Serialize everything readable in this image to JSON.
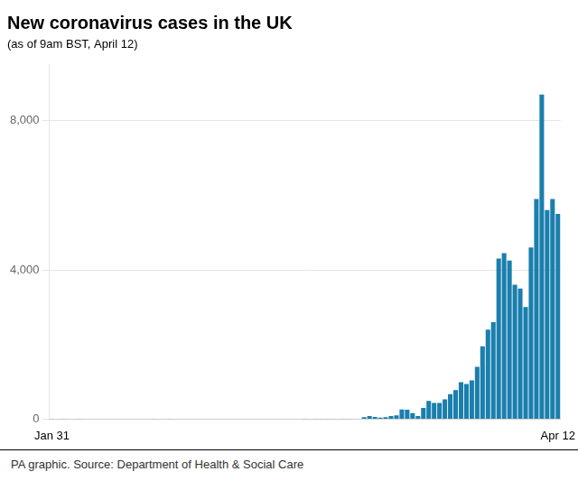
{
  "chart_data": {
    "type": "bar",
    "title": "New coronavirus cases in the UK",
    "subtitle": "(as of 9am BST, April 12)",
    "annotations": [
      "PA graphic. Source: Department of Health & Social Care"
    ],
    "color": "#1a7fad",
    "grid": true,
    "ylim": [
      0,
      9500
    ],
    "yticks": [
      0,
      {
        "value": 4000,
        "label": "4,000"
      },
      {
        "value": 8000,
        "label": "8,000"
      }
    ],
    "categories": [
      "Jan 31",
      null,
      null,
      null,
      null,
      null,
      null,
      null,
      null,
      null,
      null,
      null,
      null,
      null,
      null,
      null,
      null,
      null,
      null,
      null,
      null,
      null,
      null,
      null,
      null,
      null,
      null,
      null,
      null,
      null,
      null,
      null,
      null,
      null,
      null,
      null,
      null,
      null,
      null,
      null,
      null,
      null,
      null,
      null,
      null,
      null,
      null,
      null,
      null,
      null,
      null,
      null,
      null,
      null,
      null,
      null,
      null,
      null,
      null,
      null,
      null,
      null,
      null,
      null,
      null,
      null,
      null,
      null,
      null,
      null,
      null,
      null,
      null,
      null,
      null,
      null,
      null,
      null,
      null,
      null,
      null,
      null,
      null,
      null,
      null,
      null,
      null,
      null,
      null,
      null,
      null,
      null,
      null,
      null,
      "Apr 12"
    ],
    "values": [
      2,
      0,
      3,
      0,
      0,
      1,
      0,
      0,
      0,
      0,
      0,
      0,
      0,
      0,
      0,
      0,
      0,
      0,
      0,
      3,
      0,
      0,
      1,
      0,
      0,
      0,
      0,
      0,
      0,
      0,
      0,
      0,
      0,
      0,
      0,
      0,
      0,
      0,
      0,
      0,
      0,
      0,
      0,
      0,
      0,
      0,
      0,
      2,
      0,
      3,
      5,
      3,
      5,
      0,
      6,
      3,
      12,
      10,
      50,
      80,
      60,
      40,
      50,
      80,
      100,
      260,
      250,
      160,
      80,
      300,
      490,
      430,
      430,
      530,
      670,
      780,
      990,
      938,
      1040,
      1400,
      1950,
      2400,
      2600,
      4300,
      4450,
      4250,
      3600,
      3500,
      3000,
      4600,
      5900,
      8700,
      5600,
      5900,
      5500
    ]
  }
}
